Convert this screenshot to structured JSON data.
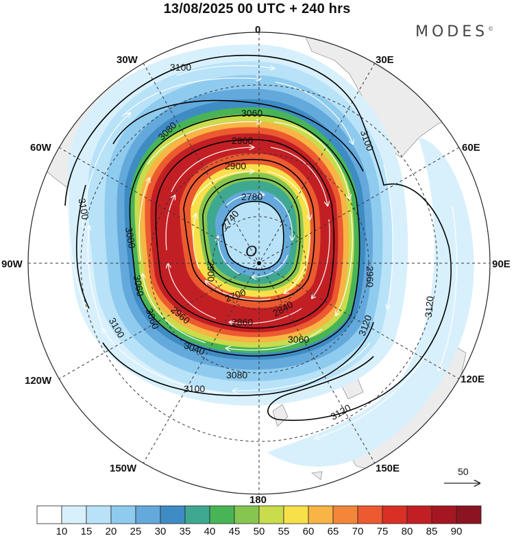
{
  "title": "13/08/2025  00 UTC  + 240 hrs",
  "brand": "MODES",
  "brand_mark": "©",
  "center_label": "O",
  "longitude_labels": [
    "0",
    "30E",
    "60E",
    "90E",
    "120E",
    "150E",
    "180",
    "150W",
    "120W",
    "90W",
    "60W",
    "30W"
  ],
  "contour_labels": [
    "3100",
    "3060",
    "3080",
    "3100",
    "3100",
    "3080",
    "3060",
    "3100",
    "3120",
    "3120",
    "3120",
    "3080",
    "3100",
    "3060",
    "3060",
    "3040",
    "2960",
    "2960",
    "2900",
    "2860",
    "2840",
    "2780",
    "2740",
    "2700",
    "2960",
    "2900"
  ],
  "reference_vector": {
    "label": "50",
    "value": 50
  },
  "colorbar": {
    "ticks": [
      "10",
      "15",
      "20",
      "25",
      "30",
      "35",
      "40",
      "45",
      "50",
      "55",
      "60",
      "65",
      "70",
      "75",
      "80",
      "85",
      "90"
    ],
    "colors": [
      "#ffffff",
      "#d8f0fc",
      "#b8e2f8",
      "#8fcbee",
      "#64a9dc",
      "#3f8cc4",
      "#3fa890",
      "#48b456",
      "#86c650",
      "#c9dc4c",
      "#f8e04a",
      "#f8b444",
      "#f4863a",
      "#ec5a30",
      "#d93026",
      "#c21f24",
      "#a51622",
      "#8a1420"
    ]
  },
  "colors": {
    "land": "#eeeeee",
    "contour": "#000000",
    "streamline": "#ffffff"
  }
}
